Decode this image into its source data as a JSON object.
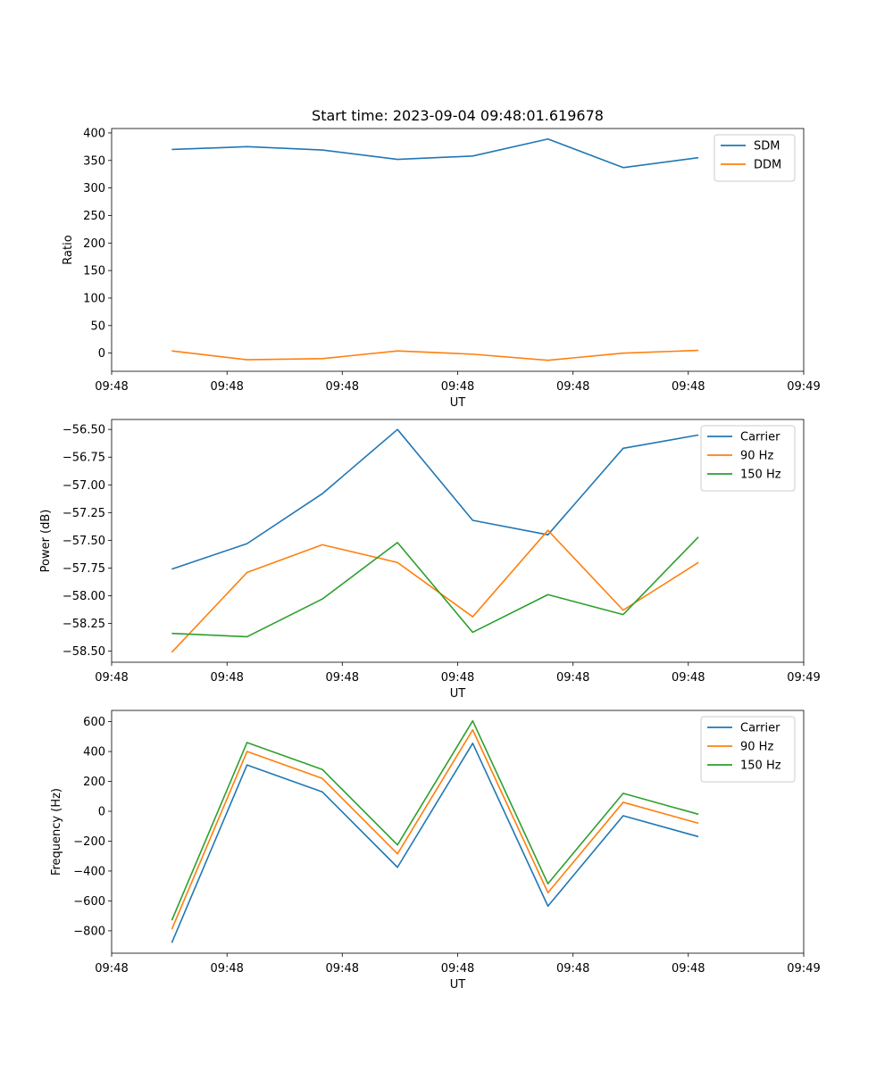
{
  "title": "Start time: 2023-09-04 09:48:01.619678",
  "colors": {
    "blue": "#1f77b4",
    "orange": "#ff7f0e",
    "green": "#2ca02c"
  },
  "chart_data": [
    {
      "type": "line",
      "title": "Start time: 2023-09-04 09:48:01.619678",
      "xlabel": "UT",
      "ylabel": "Ratio",
      "x": [
        0.4,
        0.9,
        1.4,
        1.9,
        2.4,
        2.9,
        3.4,
        3.9
      ],
      "xlim": [
        0,
        4.6
      ],
      "xticks": [
        0.0,
        0.767,
        1.533,
        2.3,
        3.067,
        3.833,
        4.6
      ],
      "xtick_labels": [
        "09:48",
        "09:48",
        "09:48",
        "09:48",
        "09:48",
        "09:48",
        "09:49"
      ],
      "ylim": [
        -33,
        408
      ],
      "yticks": [
        0,
        50,
        100,
        150,
        200,
        250,
        300,
        350,
        400
      ],
      "ytick_labels": [
        "0",
        "50",
        "100",
        "150",
        "200",
        "250",
        "300",
        "350",
        "400"
      ],
      "legend_position": "top-right",
      "series": [
        {
          "name": "SDM",
          "color": "#1f77b4",
          "values": [
            370,
            375,
            369,
            352,
            358,
            389,
            337,
            355
          ]
        },
        {
          "name": "DDM",
          "color": "#ff7f0e",
          "values": [
            4,
            -12,
            -10,
            4,
            -2,
            -13,
            0,
            5
          ]
        }
      ]
    },
    {
      "type": "line",
      "title": "",
      "xlabel": "UT",
      "ylabel": "Power (dB)",
      "x": [
        0.4,
        0.9,
        1.4,
        1.9,
        2.4,
        2.9,
        3.4,
        3.9
      ],
      "xlim": [
        0,
        4.6
      ],
      "xticks": [
        0.0,
        0.767,
        1.533,
        2.3,
        3.067,
        3.833,
        4.6
      ],
      "xtick_labels": [
        "09:48",
        "09:48",
        "09:48",
        "09:48",
        "09:48",
        "09:48",
        "09:49"
      ],
      "ylim": [
        -58.6,
        -56.41
      ],
      "yticks": [
        -58.5,
        -58.25,
        -58.0,
        -57.75,
        -57.5,
        -57.25,
        -57.0,
        -56.75,
        -56.5
      ],
      "ytick_labels": [
        "−58.50",
        "−58.25",
        "−58.00",
        "−57.75",
        "−57.50",
        "−57.25",
        "−57.00",
        "−56.75",
        "−56.50"
      ],
      "legend_position": "top-right",
      "series": [
        {
          "name": "Carrier",
          "color": "#1f77b4",
          "values": [
            -57.76,
            -57.53,
            -57.08,
            -56.5,
            -57.32,
            -57.45,
            -56.67,
            -56.55
          ]
        },
        {
          "name": "90 Hz",
          "color": "#ff7f0e",
          "values": [
            -58.51,
            -57.79,
            -57.54,
            -57.7,
            -58.19,
            -57.41,
            -58.13,
            -57.7
          ]
        },
        {
          "name": "150 Hz",
          "color": "#2ca02c",
          "values": [
            -58.34,
            -58.37,
            -58.03,
            -57.52,
            -58.33,
            -57.99,
            -58.17,
            -57.47
          ]
        }
      ]
    },
    {
      "type": "line",
      "title": "",
      "xlabel": "UT",
      "ylabel": "Frequency (Hz)",
      "x": [
        0.4,
        0.9,
        1.4,
        1.9,
        2.4,
        2.9,
        3.4,
        3.9
      ],
      "xlim": [
        0,
        4.6
      ],
      "xticks": [
        0.0,
        0.767,
        1.533,
        2.3,
        3.067,
        3.833,
        4.6
      ],
      "xtick_labels": [
        "09:48",
        "09:48",
        "09:48",
        "09:48",
        "09:48",
        "09:48",
        "09:49"
      ],
      "ylim": [
        -950,
        675
      ],
      "yticks": [
        -800,
        -600,
        -400,
        -200,
        0,
        200,
        400,
        600
      ],
      "ytick_labels": [
        "−800",
        "−600",
        "−400",
        "−200",
        "0",
        "200",
        "400",
        "600"
      ],
      "legend_position": "top-right",
      "series": [
        {
          "name": "Carrier",
          "color": "#1f77b4",
          "values": [
            -880,
            310,
            130,
            -375,
            455,
            -635,
            -30,
            -170
          ]
        },
        {
          "name": "90 Hz",
          "color": "#ff7f0e",
          "values": [
            -790,
            400,
            220,
            -285,
            545,
            -545,
            60,
            -80
          ]
        },
        {
          "name": "150 Hz",
          "color": "#2ca02c",
          "values": [
            -730,
            460,
            280,
            -225,
            605,
            -485,
            120,
            -20
          ]
        }
      ]
    }
  ]
}
